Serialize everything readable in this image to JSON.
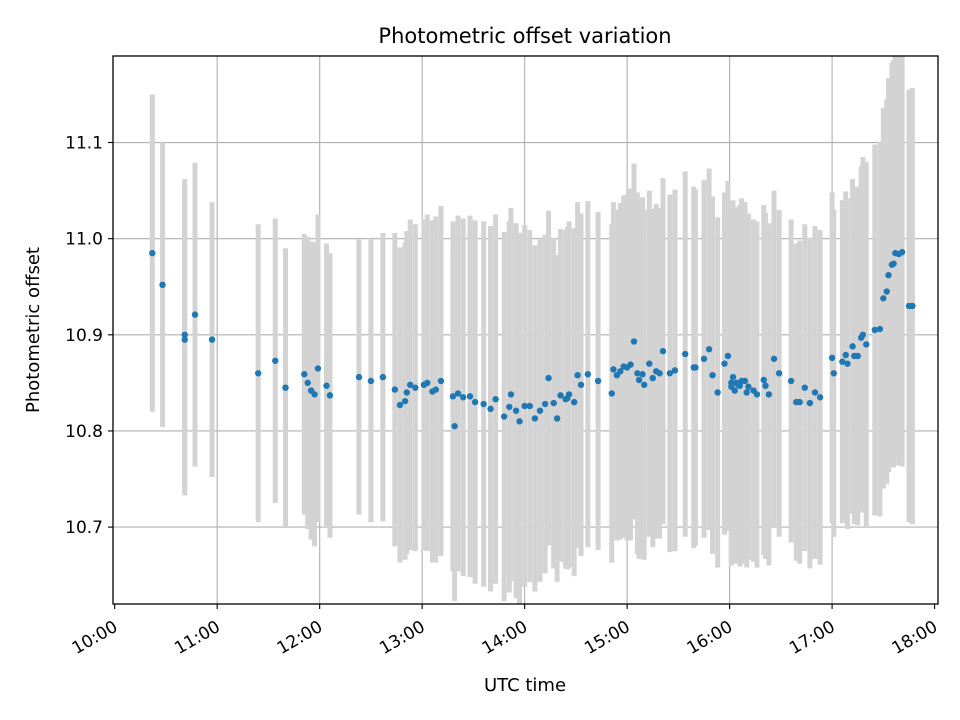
{
  "chart_data": {
    "type": "scatter",
    "title": "Photometric offset variation",
    "xlabel": "UTC time",
    "ylabel": "Photometric offset",
    "x_ticks": [
      "10:00",
      "11:00",
      "12:00",
      "13:00",
      "14:00",
      "15:00",
      "16:00",
      "17:00",
      "18:00"
    ],
    "y_ticks": [
      "10.7",
      "10.8",
      "10.9",
      "11.0",
      "11.1"
    ],
    "xlim": [
      "09:59",
      "18:02"
    ],
    "ylim": [
      10.62,
      11.19
    ],
    "grid": true,
    "colors": {
      "marker": "#1f77b4",
      "errorbar": "#d3d3d3",
      "grid": "#b0b0b0"
    },
    "series": [
      {
        "x": [
          "10:22",
          "10:28",
          "10:41",
          "10:41",
          "10:47",
          "10:57",
          "11:24",
          "11:34",
          "11:40",
          "11:51",
          "11:53",
          "11:55",
          "11:57",
          "11:59",
          "12:04",
          "12:06",
          "12:23",
          "12:30",
          "12:37",
          "12:44",
          "12:47",
          "12:50",
          "12:51",
          "12:53",
          "12:56",
          "13:01",
          "13:03",
          "13:06",
          "13:08",
          "13:11",
          "13:18",
          "13:19",
          "13:21",
          "13:24",
          "13:28",
          "13:31",
          "13:36",
          "13:40",
          "13:43",
          "13:48",
          "13:51",
          "13:52",
          "13:55",
          "13:57",
          "14:00",
          "14:03",
          "14:06",
          "14:09",
          "14:12",
          "14:14",
          "14:17",
          "14:19",
          "14:21",
          "14:24",
          "14:25",
          "14:26",
          "14:29",
          "14:31",
          "14:33",
          "14:37",
          "14:43",
          "14:51",
          "14:52",
          "14:54",
          "14:56",
          "14:58",
          "15:00",
          "15:02",
          "15:04",
          "15:06",
          "15:07",
          "15:09",
          "15:10",
          "15:13",
          "15:15",
          "15:17",
          "15:19",
          "15:21",
          "15:25",
          "15:28",
          "15:34",
          "15:39",
          "15:40",
          "15:45",
          "15:48",
          "15:50",
          "15:53",
          "15:57",
          "15:59",
          "16:01",
          "16:01",
          "16:02",
          "16:03",
          "16:04",
          "16:05",
          "16:06",
          "16:07",
          "16:09",
          "16:10",
          "16:11",
          "16:14",
          "16:16",
          "16:20",
          "16:21",
          "16:23",
          "16:26",
          "16:29",
          "16:36",
          "16:39",
          "16:41",
          "16:44",
          "16:47",
          "16:50",
          "16:53",
          "17:00",
          "17:01",
          "17:06",
          "17:08",
          "17:09",
          "17:12",
          "17:13",
          "17:15",
          "17:17",
          "17:18",
          "17:20",
          "17:25",
          "17:28",
          "17:30",
          "17:32",
          "17:33",
          "17:35",
          "17:36",
          "17:37",
          "17:39",
          "17:41",
          "17:45",
          "17:47"
        ],
        "y": [
          10.985,
          10.952,
          10.9,
          10.895,
          10.921,
          10.895,
          10.86,
          10.873,
          10.845,
          10.859,
          10.85,
          10.842,
          10.838,
          10.865,
          10.847,
          10.837,
          10.856,
          10.852,
          10.856,
          10.843,
          10.827,
          10.831,
          10.84,
          10.848,
          10.845,
          10.848,
          10.85,
          10.841,
          10.843,
          10.852,
          10.836,
          10.805,
          10.839,
          10.835,
          10.836,
          10.83,
          10.828,
          10.823,
          10.833,
          10.815,
          10.825,
          10.838,
          10.821,
          10.81,
          10.826,
          10.826,
          10.813,
          10.821,
          10.828,
          10.855,
          10.829,
          10.813,
          10.837,
          10.833,
          10.834,
          10.838,
          10.83,
          10.858,
          10.848,
          10.859,
          10.852,
          10.839,
          10.864,
          10.858,
          10.862,
          10.867,
          10.866,
          10.869,
          10.893,
          10.86,
          10.853,
          10.859,
          10.848,
          10.87,
          10.855,
          10.862,
          10.86,
          10.883,
          10.86,
          10.863,
          10.88,
          10.866,
          10.866,
          10.875,
          10.885,
          10.858,
          10.84,
          10.87,
          10.878,
          10.846,
          10.85,
          10.856,
          10.842,
          10.85,
          10.848,
          10.847,
          10.852,
          10.852,
          10.84,
          10.846,
          10.842,
          10.838,
          10.853,
          10.847,
          10.838,
          10.875,
          10.86,
          10.852,
          10.83,
          10.83,
          10.845,
          10.829,
          10.84,
          10.835,
          10.876,
          10.86,
          10.872,
          10.879,
          10.87,
          10.888,
          10.878,
          10.878,
          10.897,
          10.9,
          10.89,
          10.905,
          10.906,
          10.938,
          10.945,
          10.962,
          10.973,
          10.974,
          10.985,
          10.984,
          10.986,
          10.93,
          10.93
        ],
        "yerr": [
          0.165,
          0.148,
          0.162,
          0.162,
          0.158,
          0.143,
          0.155,
          0.148,
          0.145,
          0.146,
          0.152,
          0.155,
          0.158,
          0.16,
          0.148,
          0.148,
          0.143,
          0.147,
          0.15,
          0.163,
          0.164,
          0.165,
          0.168,
          0.172,
          0.17,
          0.172,
          0.175,
          0.178,
          0.18,
          0.182,
          0.182,
          0.182,
          0.185,
          0.186,
          0.188,
          0.189,
          0.19,
          0.19,
          0.192,
          0.192,
          0.193,
          0.194,
          0.195,
          0.196,
          0.188,
          0.183,
          0.18,
          0.178,
          0.176,
          0.174,
          0.172,
          0.17,
          0.173,
          0.176,
          0.178,
          0.18,
          0.181,
          0.18,
          0.178,
          0.18,
          0.176,
          0.176,
          0.174,
          0.172,
          0.175,
          0.178,
          0.18,
          0.183,
          0.185,
          0.188,
          0.186,
          0.184,
          0.182,
          0.18,
          0.176,
          0.174,
          0.172,
          0.18,
          0.186,
          0.188,
          0.19,
          0.188,
          0.185,
          0.186,
          0.188,
          0.186,
          0.182,
          0.178,
          0.182,
          0.186,
          0.185,
          0.184,
          0.18,
          0.183,
          0.185,
          0.188,
          0.19,
          0.186,
          0.182,
          0.18,
          0.178,
          0.18,
          0.182,
          0.18,
          0.178,
          0.175,
          0.17,
          0.168,
          0.165,
          0.168,
          0.17,
          0.172,
          0.173,
          0.174,
          0.172,
          0.17,
          0.168,
          0.17,
          0.172,
          0.174,
          0.175,
          0.176,
          0.178,
          0.185,
          0.19,
          0.193,
          0.195,
          0.198,
          0.2,
          0.205,
          0.21,
          0.212,
          0.215,
          0.22,
          0.223,
          0.225,
          0.227
        ]
      }
    ]
  }
}
